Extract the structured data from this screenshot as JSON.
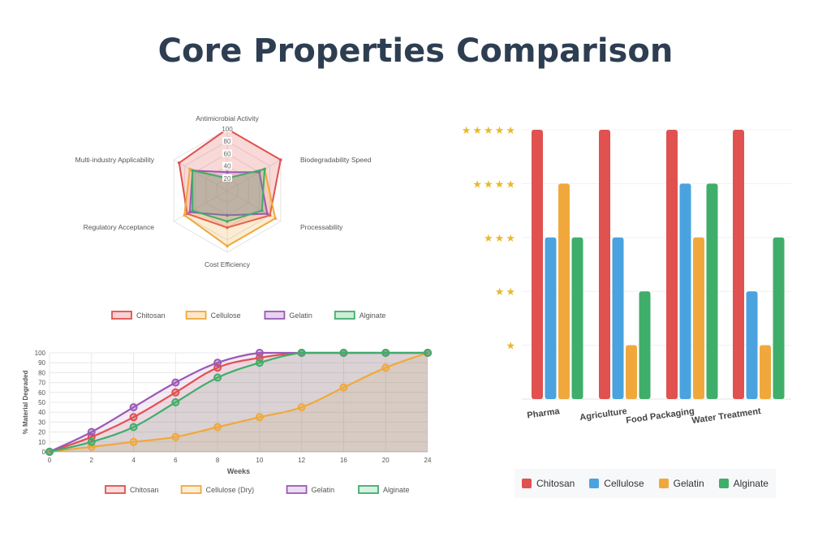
{
  "title": "Core Properties Comparison",
  "colors": {
    "chitosan": "#e0514f",
    "cellulose": "#f0a83c",
    "gelatin": "#9b59b6",
    "alginate": "#3fae6a",
    "bar_cellulose": "#4aa3df",
    "star": "#e8b92f"
  },
  "chart_data": [
    {
      "type": "radar",
      "axes": [
        "Antimicrobial Activity",
        "Biodegradability Speed",
        "Processability",
        "Cost Efficiency",
        "Regulatory Acceptance",
        "Multi-industry Applicability"
      ],
      "ticks": [
        "20",
        "40",
        "60",
        "80",
        "100"
      ],
      "rmax": 100,
      "series": [
        {
          "name": "Chitosan",
          "values": [
            100,
            100,
            80,
            60,
            75,
            90
          ]
        },
        {
          "name": "Cellulose",
          "values": [
            20,
            70,
            90,
            90,
            80,
            70
          ]
        },
        {
          "name": "Gelatin",
          "values": [
            30,
            60,
            75,
            40,
            70,
            65
          ]
        },
        {
          "name": "Alginate",
          "values": [
            20,
            70,
            65,
            50,
            65,
            65
          ]
        }
      ]
    },
    {
      "type": "line",
      "x": [
        0,
        2,
        4,
        6,
        8,
        10,
        12,
        16,
        20,
        24
      ],
      "xticks": [
        "0",
        "2",
        "4",
        "6",
        "8",
        "10",
        "12",
        "16",
        "20",
        "24"
      ],
      "yticks": [
        "0",
        "10",
        "20",
        "30",
        "40",
        "50",
        "60",
        "70",
        "80",
        "90",
        "100"
      ],
      "ylim": [
        0,
        100
      ],
      "xlabel": "Weeks",
      "ylabel": "% Material Degraded",
      "series": [
        {
          "name": "Chitosan",
          "values": [
            0,
            15,
            35,
            60,
            85,
            95,
            100,
            100,
            100,
            100
          ]
        },
        {
          "name": "Cellulose (Dry)",
          "values": [
            0,
            5,
            10,
            15,
            25,
            35,
            45,
            65,
            85,
            100
          ]
        },
        {
          "name": "Gelatin",
          "values": [
            0,
            20,
            45,
            70,
            90,
            100,
            100,
            100,
            100,
            100
          ]
        },
        {
          "name": "Alginate",
          "values": [
            0,
            10,
            25,
            50,
            75,
            90,
            100,
            100,
            100,
            100
          ]
        }
      ]
    },
    {
      "type": "bar",
      "categories": [
        "Pharma",
        "Agriculture",
        "Food Packaging",
        "Water Treatment"
      ],
      "ylim": [
        0,
        5
      ],
      "ytick_labels": [
        "★",
        "★★",
        "★★★",
        "★★★★",
        "★★★★★"
      ],
      "series": [
        {
          "name": "Chitosan",
          "values": [
            5,
            5,
            5,
            5
          ]
        },
        {
          "name": "Cellulose",
          "values": [
            3,
            3,
            4,
            2
          ]
        },
        {
          "name": "Gelatin",
          "values": [
            4,
            1,
            3,
            1
          ]
        },
        {
          "name": "Alginate",
          "values": [
            3,
            2,
            4,
            3
          ]
        }
      ]
    }
  ]
}
